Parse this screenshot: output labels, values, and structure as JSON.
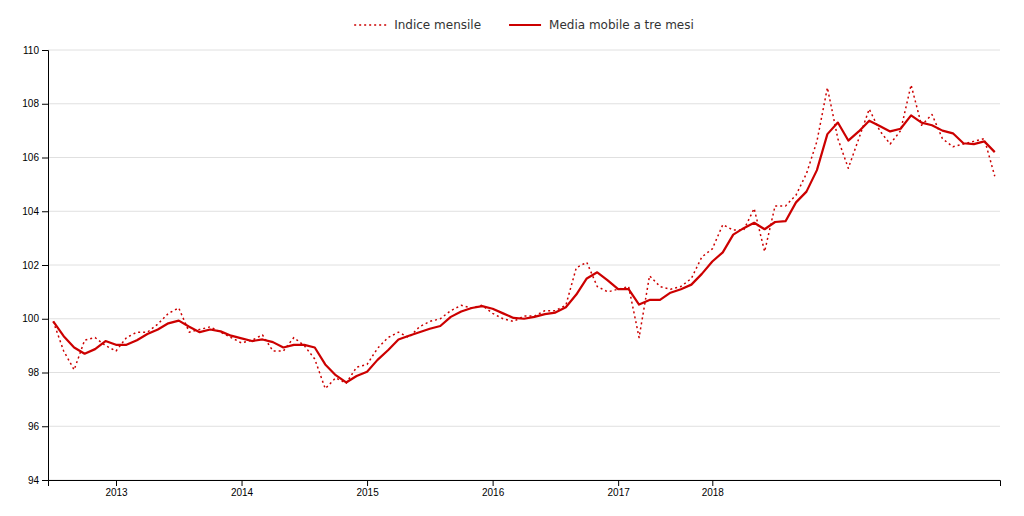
{
  "chart_data": {
    "type": "line",
    "categories": [
      null,
      null,
      null,
      null,
      null,
      null,
      "2013",
      null,
      null,
      null,
      null,
      null,
      null,
      null,
      null,
      null,
      null,
      null,
      "2014",
      null,
      null,
      null,
      null,
      null,
      null,
      null,
      null,
      null,
      null,
      null,
      "2015",
      null,
      null,
      null,
      null,
      null,
      null,
      null,
      null,
      null,
      null,
      null,
      "2016",
      null,
      null,
      null,
      null,
      null,
      null,
      null,
      null,
      null,
      null,
      null,
      "2017",
      null,
      null,
      null,
      null,
      null,
      null,
      null,
      null,
      "2018",
      null,
      null,
      null,
      null,
      null,
      null,
      null,
      null,
      null,
      null,
      null,
      null,
      null,
      null,
      null,
      null,
      null,
      null,
      null,
      null,
      null,
      null,
      null,
      null,
      null,
      null,
      null
    ],
    "series": [
      {
        "name": "Indice mensile",
        "color": "#cc0000",
        "line_style": "dotted",
        "values": [
          99.9,
          98.8,
          98.1,
          99.2,
          99.3,
          99.0,
          98.8,
          99.3,
          99.5,
          99.5,
          99.8,
          100.2,
          100.4,
          99.5,
          99.6,
          99.7,
          99.5,
          99.3,
          99.1,
          99.2,
          99.4,
          98.8,
          98.8,
          99.3,
          99.0,
          98.5,
          97.4,
          97.8,
          97.6,
          98.2,
          98.3,
          98.9,
          99.3,
          99.5,
          99.3,
          99.7,
          99.9,
          100.0,
          100.3,
          100.5,
          100.4,
          100.5,
          100.2,
          100.0,
          99.9,
          100.1,
          100.1,
          100.3,
          100.3,
          100.5,
          101.9,
          102.1,
          101.2,
          101.0,
          101.1,
          101.2,
          99.3,
          101.6,
          101.2,
          101.1,
          101.2,
          101.5,
          102.3,
          102.6,
          103.5,
          103.3,
          103.3,
          104.1,
          102.5,
          104.2,
          104.2,
          104.6,
          105.4,
          106.6,
          108.6,
          106.7,
          105.6,
          106.7,
          107.8,
          107.0,
          106.5,
          107.0,
          108.7,
          107.2,
          107.6,
          106.7,
          106.4,
          106.5,
          106.6,
          106.7,
          105.3
        ]
      },
      {
        "name": "Media mobile a tre mesi",
        "color": "#cc0000",
        "line_style": "solid",
        "values": [
          99.9,
          99.35,
          98.93,
          98.7,
          98.87,
          99.17,
          99.03,
          99.03,
          99.2,
          99.43,
          99.6,
          99.83,
          99.93,
          99.7,
          99.5,
          99.6,
          99.53,
          99.37,
          99.27,
          99.17,
          99.23,
          99.13,
          98.93,
          99.03,
          99.03,
          98.93,
          98.3,
          97.9,
          97.63,
          97.87,
          98.03,
          98.47,
          98.83,
          99.23,
          99.37,
          99.5,
          99.63,
          99.73,
          100.07,
          100.27,
          100.4,
          100.47,
          100.37,
          100.2,
          100.03,
          100.0,
          100.07,
          100.17,
          100.23,
          100.43,
          100.9,
          101.5,
          101.73,
          101.43,
          101.1,
          101.1,
          100.53,
          100.7,
          100.7,
          100.97,
          101.1,
          101.27,
          101.67,
          102.13,
          102.47,
          103.13,
          103.37,
          103.57,
          103.33,
          103.6,
          103.63,
          104.33,
          104.73,
          105.53,
          106.87,
          107.3,
          106.63,
          106.97,
          107.37,
          107.17,
          106.97,
          107.07,
          107.57,
          107.3,
          107.2,
          107.0,
          106.9,
          106.53,
          106.5,
          106.6,
          106.2
        ]
      }
    ],
    "ylim": [
      94,
      110
    ],
    "yticks": [
      94,
      96,
      98,
      100,
      102,
      104,
      106,
      108,
      110
    ],
    "grid": true,
    "legend": "top"
  }
}
